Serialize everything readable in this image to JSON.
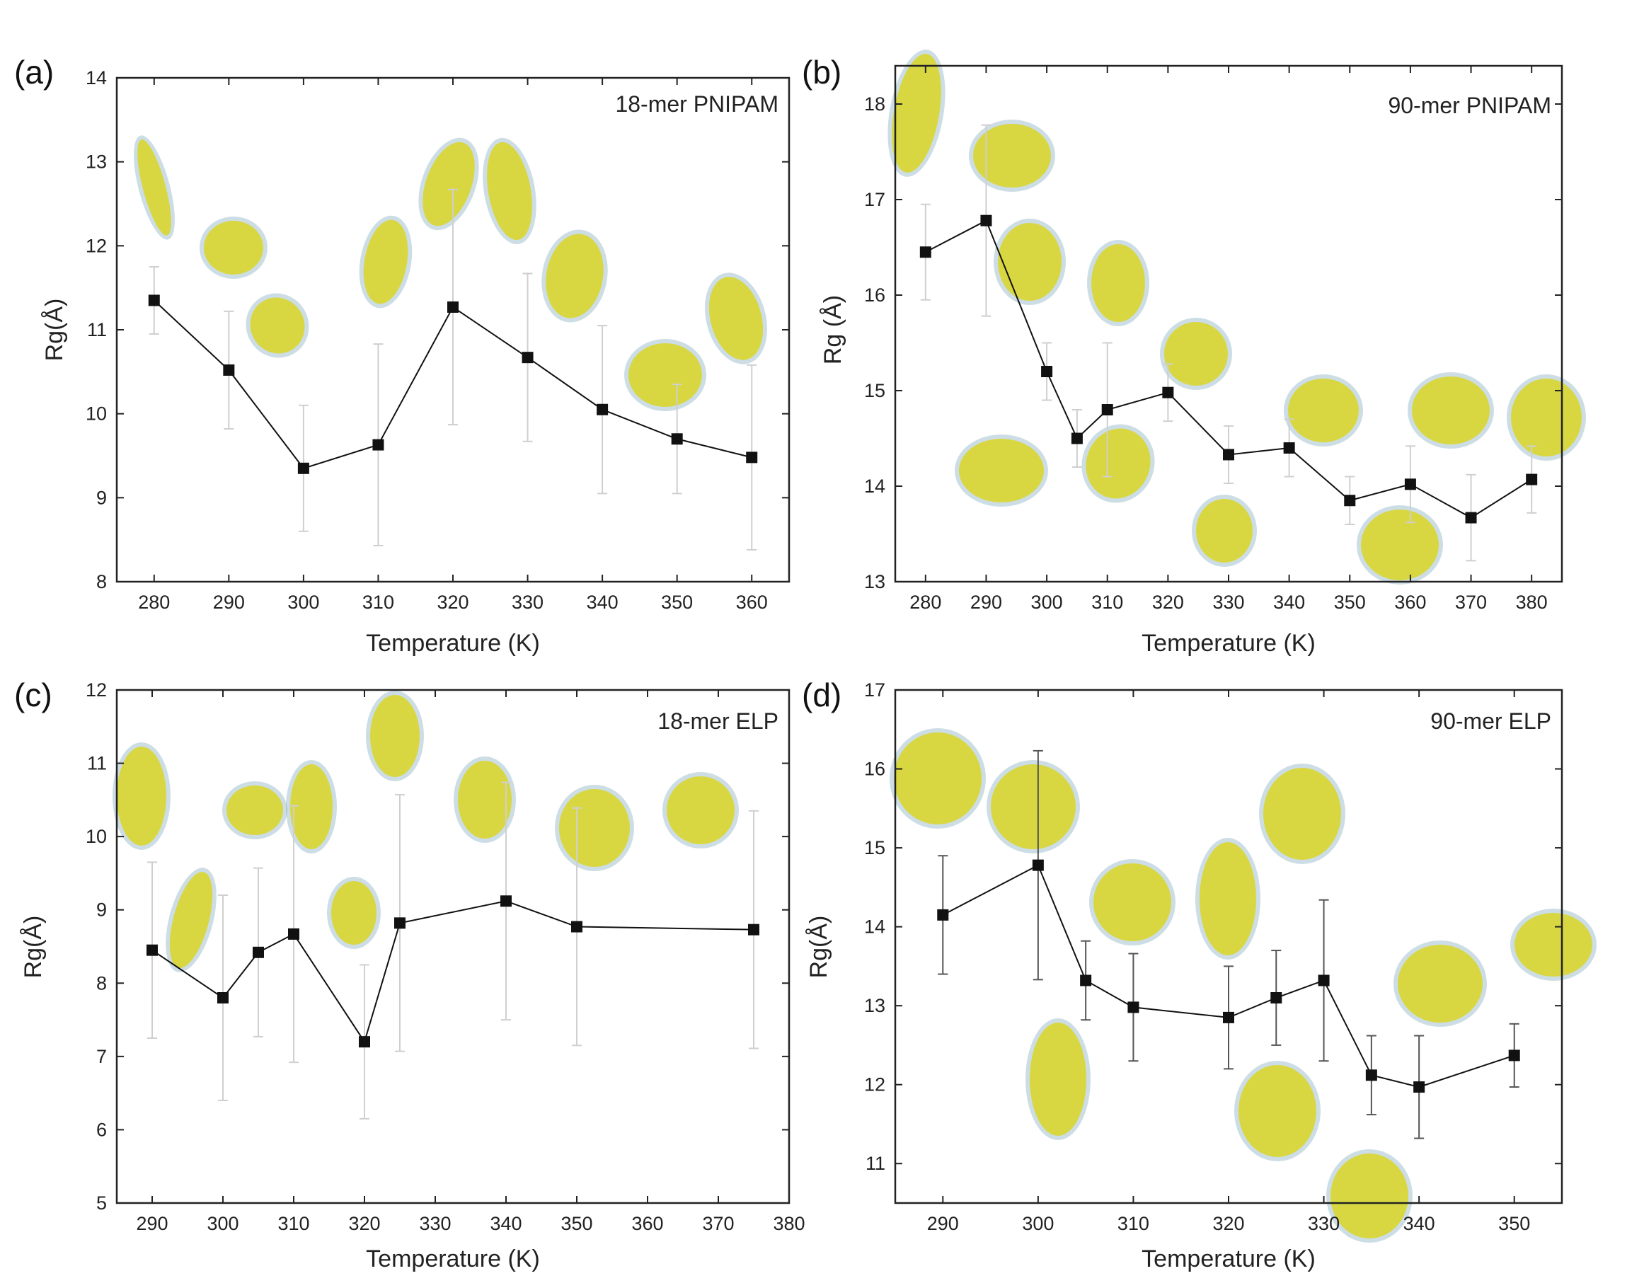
{
  "colors": {
    "marker": "#111111",
    "line": "#111111",
    "errorbar_light": "#cfcfcf",
    "errorbar_dark": "#555555",
    "molecule_yellow": "#d9d626",
    "molecule_blue": "#6f9fb5"
  },
  "chart_data": [
    {
      "panel": "(a)",
      "type": "line",
      "annotation": "18-mer PNIPAM",
      "xlabel": "Temperature (K)",
      "ylabel": "Rg(Å)",
      "xlim": [
        275,
        365
      ],
      "ylim": [
        8,
        14
      ],
      "xticks": [
        280,
        290,
        300,
        310,
        320,
        330,
        340,
        350,
        360
      ],
      "yticks": [
        8,
        9,
        10,
        11,
        12,
        13,
        14
      ],
      "errorbar_style": "light",
      "x": [
        280,
        290,
        300,
        310,
        320,
        330,
        340,
        350,
        360
      ],
      "y": [
        11.35,
        10.52,
        9.35,
        9.63,
        11.27,
        10.67,
        10.05,
        9.7,
        9.48
      ],
      "yerr": [
        0.4,
        0.7,
        0.75,
        1.2,
        1.4,
        1.0,
        1.0,
        0.65,
        1.1
      ],
      "insets": "molecular conformation snapshots"
    },
    {
      "panel": "(b)",
      "type": "line",
      "annotation": "90-mer PNIPAM",
      "xlabel": "Temperature (K)",
      "ylabel": "Rg (Å)",
      "xlim": [
        275,
        385
      ],
      "ylim": [
        13,
        18.4
      ],
      "xticks": [
        280,
        290,
        300,
        310,
        320,
        330,
        340,
        350,
        360,
        370,
        380
      ],
      "yticks": [
        13,
        14,
        15,
        16,
        17,
        18
      ],
      "errorbar_style": "light",
      "x": [
        280,
        290,
        300,
        305,
        310,
        320,
        330,
        340,
        350,
        360,
        370,
        380
      ],
      "y": [
        16.45,
        16.78,
        15.2,
        14.5,
        14.8,
        14.98,
        14.33,
        14.4,
        13.85,
        14.02,
        13.67,
        14.07
      ],
      "yerr": [
        0.5,
        1.0,
        0.3,
        0.3,
        0.7,
        0.3,
        0.3,
        0.3,
        0.25,
        0.4,
        0.45,
        0.35
      ],
      "insets": "molecular conformation snapshots"
    },
    {
      "panel": "(c)",
      "type": "line",
      "annotation": "18-mer ELP",
      "xlabel": "Temperature (K)",
      "ylabel": "Rg(Å)",
      "xlim": [
        285,
        380
      ],
      "ylim": [
        5,
        12
      ],
      "xticks": [
        290,
        300,
        310,
        320,
        330,
        340,
        350,
        360,
        370,
        380
      ],
      "yticks": [
        5,
        6,
        7,
        8,
        9,
        10,
        11,
        12
      ],
      "errorbar_style": "light",
      "x": [
        290,
        300,
        305,
        310,
        320,
        325,
        340,
        350,
        375
      ],
      "y": [
        8.45,
        7.8,
        8.42,
        8.67,
        7.2,
        8.82,
        9.12,
        8.77,
        8.73
      ],
      "yerr": [
        1.2,
        1.4,
        1.15,
        1.75,
        1.05,
        1.75,
        1.62,
        1.62,
        1.62
      ],
      "insets": "molecular conformation snapshots"
    },
    {
      "panel": "(d)",
      "type": "line",
      "annotation": "90-mer ELP",
      "xlabel": "Temperature (K)",
      "ylabel": "Rg(Å)",
      "xlim": [
        285,
        355
      ],
      "ylim": [
        10.5,
        17
      ],
      "xticks": [
        290,
        300,
        310,
        320,
        330,
        340,
        350
      ],
      "yticks": [
        11,
        12,
        13,
        14,
        15,
        16,
        17
      ],
      "errorbar_style": "dark",
      "x": [
        290,
        300,
        305,
        310,
        320,
        325,
        330,
        335,
        340,
        350
      ],
      "y": [
        14.15,
        14.78,
        13.32,
        12.98,
        12.85,
        13.1,
        13.32,
        12.12,
        11.97,
        12.37
      ],
      "yerr": [
        0.75,
        1.45,
        0.5,
        0.68,
        0.65,
        0.6,
        1.02,
        0.5,
        0.65,
        0.4
      ],
      "insets": "molecular conformation snapshots"
    }
  ]
}
